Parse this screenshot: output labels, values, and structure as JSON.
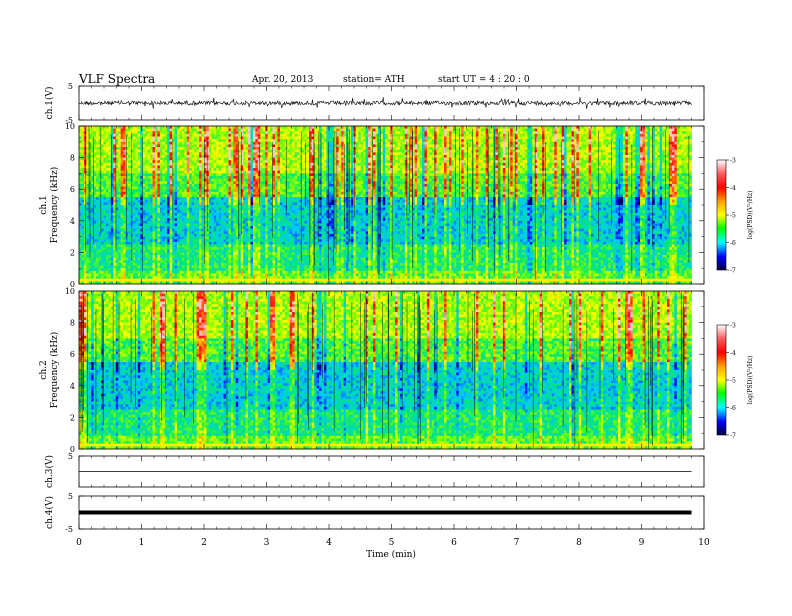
{
  "header": {
    "title": "VLF  Spectra",
    "date": "Apr. 20, 2013",
    "station": "station= ATH",
    "start": "start  UT  =   4  : 20 : 0"
  },
  "chart_data": [
    {
      "type": "line",
      "name": "ch1-waveform",
      "ylabel": "ch.1(V)",
      "ylim": [
        -5,
        5
      ],
      "yticks": [
        "5",
        "-5"
      ],
      "baseline": 0
    },
    {
      "type": "heatmap",
      "name": "ch1-spectrogram",
      "ylabel_top": "ch.1",
      "ylabel": "Frequency  (kHz)",
      "ylim": [
        0,
        10
      ],
      "yticks": [
        "0",
        "2",
        "4",
        "6",
        "8",
        "10"
      ],
      "colorbar": {
        "label": "log(PSD)(V²/Hz)",
        "range": [
          -7,
          -3
        ],
        "ticks": [
          "-3",
          "-4",
          "-5",
          "-6",
          "-7"
        ]
      }
    },
    {
      "type": "heatmap",
      "name": "ch2-spectrogram",
      "ylabel_top": "ch.2",
      "ylabel": "Frequency  (kHz)",
      "ylim": [
        0,
        10
      ],
      "yticks": [
        "0",
        "2",
        "4",
        "6",
        "8",
        "10"
      ],
      "colorbar": {
        "label": "log(PSD)(V²/Hz)",
        "range": [
          -7,
          -3
        ],
        "ticks": [
          "-3",
          "-4",
          "-5",
          "-6",
          "-7"
        ]
      }
    },
    {
      "type": "line",
      "name": "ch3-waveform",
      "ylabel": "ch.3(V)",
      "ylim": [
        -5,
        5
      ],
      "yticks": [
        "5"
      ],
      "baseline": 0
    },
    {
      "type": "line",
      "name": "ch4-waveform",
      "ylabel": "ch.4(V)",
      "ylim": [
        -5,
        5
      ],
      "yticks": [
        "5",
        "-5"
      ],
      "baseline": 0
    }
  ],
  "xaxis": {
    "label": "Time  (min)",
    "ticks": [
      "0",
      "1",
      "2",
      "3",
      "4",
      "5",
      "6",
      "7",
      "8",
      "9",
      "10"
    ],
    "xlim": [
      0,
      10
    ],
    "data_end": 9.8
  }
}
